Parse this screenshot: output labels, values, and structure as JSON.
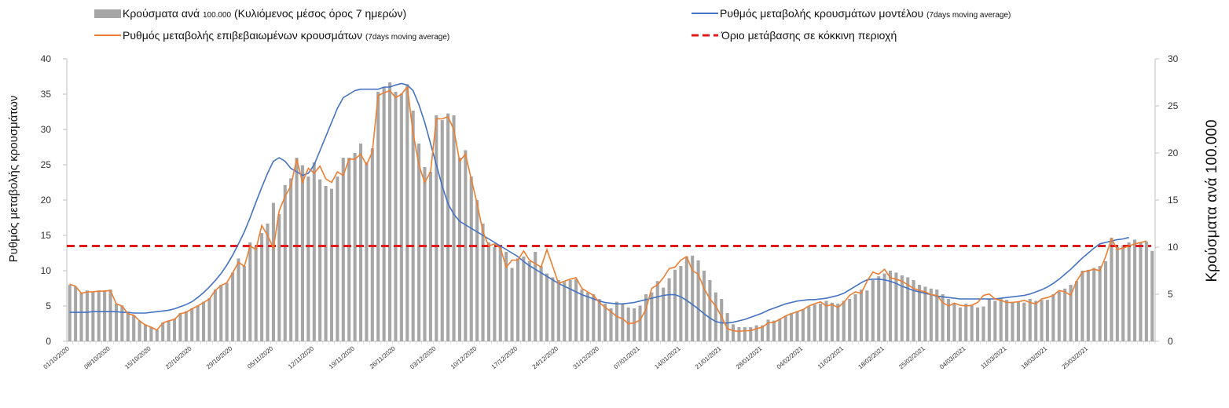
{
  "chart_data": {
    "type": "bar+line",
    "legend": {
      "bars": "Κρούσματα ανά",
      "bars_number": "100.000",
      "bars_rest": "(Κυλιόμενος μέσος όρος 7 ημερών)",
      "model": "Ρυθμός μεταβολής κρουσμάτων μοντέλου",
      "model_note": "(7days moving average)",
      "confirmed": "Ρυθμός μεταβολής επιβεβαιωμένων κρουσμάτων",
      "confirmed_note": "(7days moving average)",
      "threshold": "Όριο μετάβασης σε κόκκινη περιοχή"
    },
    "ylabel_left": "Ρυθμός μεταβολής κρουσμάτων",
    "ylabel_right": "Κρούσματα ανά 100.000",
    "left_axis": {
      "min": 0,
      "max": 40,
      "ticks": [
        "0",
        "5",
        "10",
        "15",
        "20",
        "25",
        "30",
        "35",
        "40"
      ]
    },
    "right_axis": {
      "min": 0,
      "max": 30,
      "ticks": [
        "0",
        "5",
        "10",
        "15",
        "20",
        "25",
        "30"
      ]
    },
    "x_tick_labels": [
      "01/10/2020",
      "08/10/2020",
      "15/10/2020",
      "22/10/2020",
      "29/10/2020",
      "05/11/2020",
      "12/11/2020",
      "19/11/2020",
      "26/11/2020",
      "03/12/2020",
      "10/12/2020",
      "17/12/2020",
      "24/12/2020",
      "31/12/2020",
      "07/01/2021",
      "14/01/2021",
      "21/01/2021",
      "28/01/2021",
      "04/02/2021",
      "11/02/2021",
      "18/02/2021",
      "25/02/2021",
      "04/03/2021",
      "11/03/2021",
      "18/03/2021",
      "25/03/2021"
    ],
    "threshold_value": 13.5,
    "cases_per_100k": [
      6.0,
      5.8,
      5.2,
      5.4,
      5.3,
      5.4,
      5.4,
      5.5,
      4.0,
      3.8,
      3.0,
      2.8,
      2.2,
      1.8,
      1.5,
      1.2,
      2.0,
      2.2,
      2.4,
      3.0,
      3.2,
      3.5,
      3.8,
      4.2,
      4.6,
      5.5,
      6.0,
      6.2,
      7.3,
      8.8,
      8.0,
      10.5,
      10.2,
      11.5,
      12.5,
      14.7,
      13.5,
      16.6,
      17.3,
      19.5,
      18.7,
      17.5,
      19.0,
      17.2,
      16.5,
      16.2,
      17.5,
      19.5,
      19.5,
      20.0,
      21.0,
      19.0,
      20.5,
      26.5,
      27.0,
      27.5,
      26.5,
      26.3,
      27.3,
      24.5,
      21.0,
      18.5,
      18.0,
      24.0,
      23.5,
      24.2,
      24.0,
      19.5,
      20.3,
      17.5,
      15.0,
      12.5,
      10.5,
      10.0,
      10.0,
      9.5,
      7.8,
      8.8,
      9.0,
      8.5,
      9.5,
      8.0,
      7.2,
      6.8,
      6.5,
      6.3,
      6.5,
      6.6,
      5.5,
      5.2,
      5.0,
      4.5,
      4.0,
      3.5,
      4.2,
      4.0,
      3.6,
      3.5,
      3.8,
      5.0,
      5.2,
      6.4,
      5.7,
      6.7,
      7.6,
      8.0,
      9.0,
      9.1,
      8.6,
      7.5,
      6.5,
      5.2,
      4.5,
      3.0,
      1.8,
      1.5,
      1.5,
      1.5,
      1.7,
      1.7,
      2.3,
      2.2,
      2.4,
      2.7,
      3.0,
      3.2,
      3.4,
      3.7,
      3.9,
      4.0,
      4.3,
      4.1,
      4.0,
      4.3,
      4.5,
      5.0,
      5.5,
      5.4,
      6.5,
      6.9,
      7.2,
      7.5,
      7.3,
      7.0,
      6.8,
      6.5,
      6.0,
      5.8,
      5.6,
      5.5,
      5.0,
      4.5,
      4.0,
      3.6,
      4.0,
      3.8,
      3.6,
      3.7,
      4.5,
      4.3,
      4.5,
      4.4,
      4.2,
      4.2,
      4.1,
      4.5,
      4.3,
      4.4,
      4.4,
      5.0,
      5.3,
      5.6,
      6.0,
      6.4,
      7.5,
      7.6,
      7.8,
      8.0,
      8.5,
      11.0,
      10.0,
      10.2,
      10.5,
      10.8,
      10.5,
      10.6,
      9.6
    ],
    "confirmed_rate": [
      8.1,
      7.8,
      6.8,
      7.0,
      7.0,
      7.1,
      7.1,
      7.2,
      5.3,
      5.0,
      3.9,
      3.7,
      2.9,
      2.3,
      2.0,
      1.6,
      2.6,
      2.9,
      3.1,
      3.9,
      4.1,
      4.6,
      5.0,
      5.5,
      6.0,
      7.2,
      7.9,
      8.3,
      9.7,
      11.2,
      10.6,
      13.5,
      13.0,
      16.4,
      15.0,
      13.2,
      18.5,
      20.5,
      22.0,
      25.8,
      22.5,
      24.5,
      23.8,
      24.8,
      23.0,
      22.5,
      24.0,
      23.5,
      25.8,
      25.8,
      26.5,
      25.0,
      26.8,
      34.8,
      35.2,
      35.5,
      34.5,
      35.0,
      36.0,
      29.5,
      25.0,
      22.5,
      24.0,
      31.5,
      31.5,
      31.8,
      30.0,
      25.5,
      26.5,
      23.0,
      19.5,
      15.5,
      13.5,
      13.8,
      13.2,
      10.5,
      11.5,
      11.5,
      12.8,
      11.5,
      11.0,
      10.5,
      13.0,
      10.6,
      8.2,
      8.5,
      8.8,
      9.0,
      7.5,
      7.0,
      6.5,
      5.5,
      4.8,
      4.2,
      3.5,
      3.2,
      2.5,
      2.6,
      3.0,
      4.5,
      7.5,
      8.0,
      9.0,
      10.3,
      10.5,
      11.5,
      12.0,
      10.0,
      9.5,
      7.5,
      6.0,
      5.0,
      3.5,
      1.8,
      1.5,
      1.4,
      1.5,
      1.5,
      1.8,
      2.0,
      2.6,
      2.7,
      3.1,
      3.6,
      3.9,
      4.2,
      4.5,
      5.0,
      5.3,
      5.6,
      5.0,
      5.2,
      4.8,
      5.5,
      6.5,
      7.0,
      6.8,
      8.5,
      9.8,
      9.5,
      10.2,
      9.0,
      8.8,
      8.5,
      8.0,
      7.5,
      7.2,
      7.0,
      6.6,
      6.5,
      5.5,
      5.0,
      5.4,
      5.1,
      5.0,
      5.1,
      5.5,
      6.5,
      6.7,
      6.0,
      5.8,
      5.5,
      5.5,
      5.6,
      5.8,
      5.5,
      5.3,
      6.0,
      6.2,
      6.5,
      7.2,
      7.0,
      6.5,
      8.5,
      9.8,
      10.0,
      10.2,
      10.0,
      12.0,
      14.5,
      13.0,
      13.2,
      13.5,
      13.8,
      14.0,
      14.2
    ],
    "model_rate": [
      4.1,
      4.1,
      4.1,
      4.1,
      4.2,
      4.2,
      4.2,
      4.2,
      4.2,
      4.1,
      4.1,
      4.0,
      4.0,
      4.0,
      4.1,
      4.2,
      4.3,
      4.4,
      4.6,
      4.9,
      5.2,
      5.6,
      6.2,
      6.9,
      7.7,
      8.6,
      9.6,
      10.8,
      12.2,
      13.8,
      15.5,
      17.5,
      19.7,
      21.8,
      23.8,
      25.5,
      26.0,
      25.5,
      24.5,
      24.0,
      23.5,
      23.8,
      25.0,
      27.0,
      29.0,
      31.0,
      33.0,
      34.5,
      35.0,
      35.5,
      35.7,
      35.7,
      35.7,
      35.7,
      36.0,
      36.0,
      36.3,
      36.5,
      36.3,
      35.5,
      33.5,
      31.0,
      28.0,
      25.0,
      22.0,
      19.5,
      18.0,
      17.0,
      16.5,
      16.0,
      15.5,
      15.0,
      14.5,
      14.0,
      13.5,
      13.0,
      12.5,
      12.0,
      11.3,
      10.7,
      10.2,
      9.7,
      9.2,
      8.7,
      8.2,
      7.8,
      7.4,
      7.0,
      6.6,
      6.3,
      6.0,
      5.7,
      5.5,
      5.4,
      5.3,
      5.3,
      5.4,
      5.5,
      5.7,
      5.9,
      6.1,
      6.3,
      6.5,
      6.6,
      6.6,
      6.3,
      5.8,
      5.2,
      4.6,
      3.9,
      3.3,
      2.8,
      2.6,
      2.6,
      2.7,
      2.9,
      3.1,
      3.4,
      3.7,
      4.0,
      4.4,
      4.7,
      5.0,
      5.3,
      5.5,
      5.7,
      5.8,
      5.9,
      5.9,
      6.0,
      6.1,
      6.3,
      6.5,
      6.8,
      7.3,
      7.8,
      8.3,
      8.7,
      8.8,
      8.8,
      8.7,
      8.5,
      8.2,
      7.8,
      7.5,
      7.2,
      7.0,
      6.8,
      6.6,
      6.4,
      6.3,
      6.2,
      6.1,
      6.0,
      6.0,
      6.0,
      6.0,
      6.0,
      6.0,
      6.0,
      6.1,
      6.2,
      6.3,
      6.4,
      6.5,
      6.7,
      7.0,
      7.3,
      7.7,
      8.2,
      8.8,
      9.5,
      10.2,
      11.0,
      11.8,
      12.5,
      13.2,
      13.8,
      14.0,
      14.2,
      14.4,
      14.5,
      14.7
    ]
  }
}
